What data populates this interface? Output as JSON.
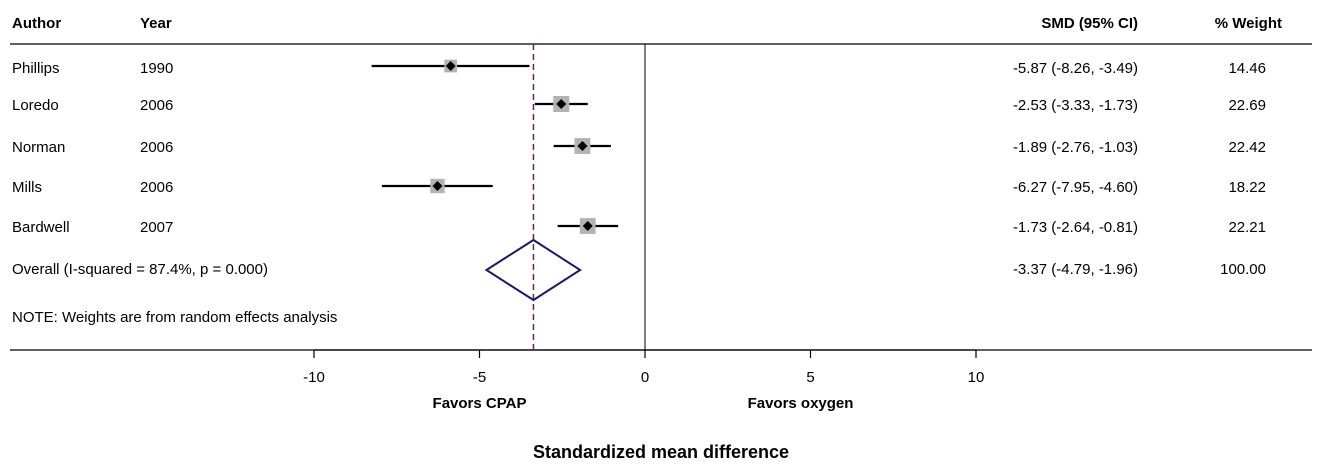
{
  "chart_data": {
    "type": "forest",
    "headers": {
      "author": "Author",
      "year": "Year",
      "estimate": "SMD (95% CI)",
      "weight": "% Weight"
    },
    "studies": [
      {
        "author": "Phillips",
        "year": "1990",
        "smd": -5.87,
        "lo": -8.26,
        "hi": -3.49,
        "ci_text": "-5.87 (-8.26, -3.49)",
        "weight": 14.46,
        "weight_text": "14.46"
      },
      {
        "author": "Loredo",
        "year": "2006",
        "smd": -2.53,
        "lo": -3.33,
        "hi": -1.73,
        "ci_text": "-2.53 (-3.33, -1.73)",
        "weight": 22.69,
        "weight_text": "22.69"
      },
      {
        "author": "Norman",
        "year": "2006",
        "smd": -1.89,
        "lo": -2.76,
        "hi": -1.03,
        "ci_text": "-1.89 (-2.76, -1.03)",
        "weight": 22.42,
        "weight_text": "22.42"
      },
      {
        "author": "Mills",
        "year": "2006",
        "smd": -6.27,
        "lo": -7.95,
        "hi": -4.6,
        "ci_text": "-6.27 (-7.95, -4.60)",
        "weight": 18.22,
        "weight_text": "18.22"
      },
      {
        "author": "Bardwell",
        "year": "2007",
        "smd": -1.73,
        "lo": -2.64,
        "hi": -0.81,
        "ci_text": "-1.73 (-2.64, -0.81)",
        "weight": 22.21,
        "weight_text": "22.21"
      }
    ],
    "overall": {
      "label": "Overall  (I-squared = 87.4%, p = 0.000)",
      "smd": -3.37,
      "lo": -4.79,
      "hi": -1.96,
      "ci_text": "-3.37 (-4.79, -1.96)",
      "weight_text": "100.00"
    },
    "note": "NOTE: Weights are from random effects analysis",
    "x_ticks": [
      -10,
      -5,
      0,
      5,
      10
    ],
    "x_tick_labels": [
      "-10",
      "-5",
      "0",
      "5",
      "10"
    ],
    "xlim": [
      -10,
      10
    ],
    "null_value": 0,
    "favors_left": "Favors CPAP",
    "favors_right": "Favors oxygen",
    "xlabel": "Standardized mean difference",
    "colors": {
      "diamond": "#1a1a6e",
      "overall_line": "#8b1a2b",
      "weight_box": "#b3b3b3",
      "point": "#000000"
    }
  }
}
